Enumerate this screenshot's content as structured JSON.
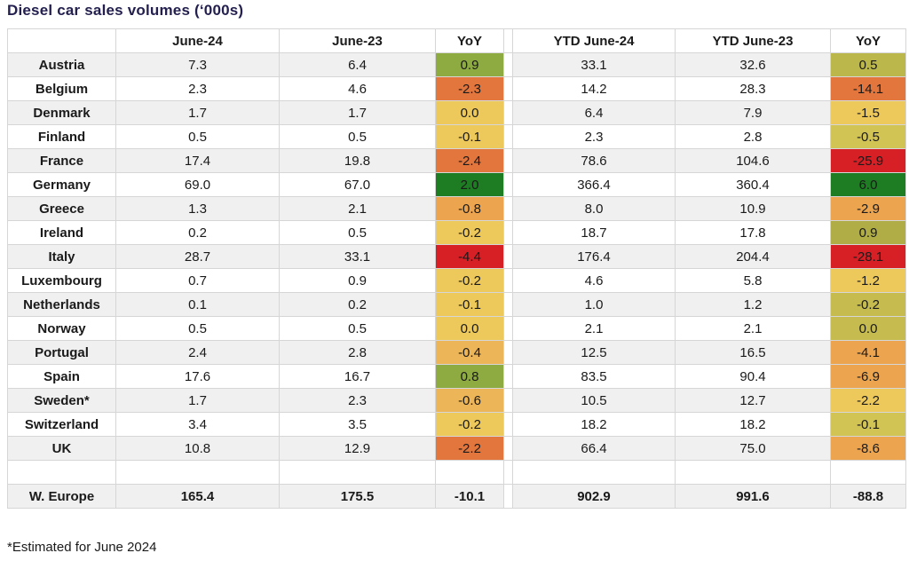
{
  "title": "Diesel car sales volumes (‘000s)",
  "footnote": "*Estimated for June 2024",
  "palette": {
    "green_dark": "#1e7d23",
    "green": "#8dab40",
    "olive1": "#b0ad46",
    "olive2": "#bcb74b",
    "olive3": "#c6bb4f",
    "olive4": "#d2c355",
    "yellow": "#edc85a",
    "amber": "#ecb557",
    "orange_light": "#eca44f",
    "orange": "#e2763d",
    "red": "#d71f26"
  },
  "chart_data": {
    "type": "table",
    "title": "Diesel car sales volumes (‘000s)",
    "columns": [
      "",
      "June-24",
      "June-23",
      "YoY",
      "YTD June-24",
      "YTD June-23",
      "YoY"
    ],
    "rows": [
      {
        "label": "Austria",
        "june24": "7.3",
        "june23": "6.4",
        "yoy": "0.9",
        "ytd24": "33.1",
        "ytd23": "32.6",
        "ytd_yoy": "0.5",
        "yoy_color": "green",
        "ytd_yoy_color": "olive2"
      },
      {
        "label": "Belgium",
        "june24": "2.3",
        "june23": "4.6",
        "yoy": "-2.3",
        "ytd24": "14.2",
        "ytd23": "28.3",
        "ytd_yoy": "-14.1",
        "yoy_color": "orange",
        "ytd_yoy_color": "orange"
      },
      {
        "label": "Denmark",
        "june24": "1.7",
        "june23": "1.7",
        "yoy": "0.0",
        "ytd24": "6.4",
        "ytd23": "7.9",
        "ytd_yoy": "-1.5",
        "yoy_color": "yellow",
        "ytd_yoy_color": "yellow"
      },
      {
        "label": "Finland",
        "june24": "0.5",
        "june23": "0.5",
        "yoy": "-0.1",
        "ytd24": "2.3",
        "ytd23": "2.8",
        "ytd_yoy": "-0.5",
        "yoy_color": "yellow",
        "ytd_yoy_color": "olive4"
      },
      {
        "label": "France",
        "june24": "17.4",
        "june23": "19.8",
        "yoy": "-2.4",
        "ytd24": "78.6",
        "ytd23": "104.6",
        "ytd_yoy": "-25.9",
        "yoy_color": "orange",
        "ytd_yoy_color": "red"
      },
      {
        "label": "Germany",
        "june24": "69.0",
        "june23": "67.0",
        "yoy": "2.0",
        "ytd24": "366.4",
        "ytd23": "360.4",
        "ytd_yoy": "6.0",
        "yoy_color": "green_dark",
        "ytd_yoy_color": "green_dark"
      },
      {
        "label": "Greece",
        "june24": "1.3",
        "june23": "2.1",
        "yoy": "-0.8",
        "ytd24": "8.0",
        "ytd23": "10.9",
        "ytd_yoy": "-2.9",
        "yoy_color": "orange_light",
        "ytd_yoy_color": "orange_light"
      },
      {
        "label": "Ireland",
        "june24": "0.2",
        "june23": "0.5",
        "yoy": "-0.2",
        "ytd24": "18.7",
        "ytd23": "17.8",
        "ytd_yoy": "0.9",
        "yoy_color": "yellow",
        "ytd_yoy_color": "olive1"
      },
      {
        "label": "Italy",
        "june24": "28.7",
        "june23": "33.1",
        "yoy": "-4.4",
        "ytd24": "176.4",
        "ytd23": "204.4",
        "ytd_yoy": "-28.1",
        "yoy_color": "red",
        "ytd_yoy_color": "red"
      },
      {
        "label": "Luxembourg",
        "june24": "0.7",
        "june23": "0.9",
        "yoy": "-0.2",
        "ytd24": "4.6",
        "ytd23": "5.8",
        "ytd_yoy": "-1.2",
        "yoy_color": "yellow",
        "ytd_yoy_color": "yellow"
      },
      {
        "label": "Netherlands",
        "june24": "0.1",
        "june23": "0.2",
        "yoy": "-0.1",
        "ytd24": "1.0",
        "ytd23": "1.2",
        "ytd_yoy": "-0.2",
        "yoy_color": "yellow",
        "ytd_yoy_color": "olive3"
      },
      {
        "label": "Norway",
        "june24": "0.5",
        "june23": "0.5",
        "yoy": "0.0",
        "ytd24": "2.1",
        "ytd23": "2.1",
        "ytd_yoy": "0.0",
        "yoy_color": "yellow",
        "ytd_yoy_color": "olive3"
      },
      {
        "label": "Portugal",
        "june24": "2.4",
        "june23": "2.8",
        "yoy": "-0.4",
        "ytd24": "12.5",
        "ytd23": "16.5",
        "ytd_yoy": "-4.1",
        "yoy_color": "amber",
        "ytd_yoy_color": "orange_light"
      },
      {
        "label": "Spain",
        "june24": "17.6",
        "june23": "16.7",
        "yoy": "0.8",
        "ytd24": "83.5",
        "ytd23": "90.4",
        "ytd_yoy": "-6.9",
        "yoy_color": "green",
        "ytd_yoy_color": "orange_light"
      },
      {
        "label": "Sweden*",
        "june24": "1.7",
        "june23": "2.3",
        "yoy": "-0.6",
        "ytd24": "10.5",
        "ytd23": "12.7",
        "ytd_yoy": "-2.2",
        "yoy_color": "amber",
        "ytd_yoy_color": "yellow"
      },
      {
        "label": "Switzerland",
        "june24": "3.4",
        "june23": "3.5",
        "yoy": "-0.2",
        "ytd24": "18.2",
        "ytd23": "18.2",
        "ytd_yoy": "-0.1",
        "yoy_color": "yellow",
        "ytd_yoy_color": "olive4"
      },
      {
        "label": "UK",
        "june24": "10.8",
        "june23": "12.9",
        "yoy": "-2.2",
        "ytd24": "66.4",
        "ytd23": "75.0",
        "ytd_yoy": "-8.6",
        "yoy_color": "orange",
        "ytd_yoy_color": "orange_light"
      }
    ],
    "total_row": {
      "label": "W. Europe",
      "june24": "165.4",
      "june23": "175.5",
      "yoy": "-10.1",
      "ytd24": "902.9",
      "ytd23": "991.6",
      "ytd_yoy": "-88.8"
    },
    "footnote": "*Estimated for June 2024"
  }
}
